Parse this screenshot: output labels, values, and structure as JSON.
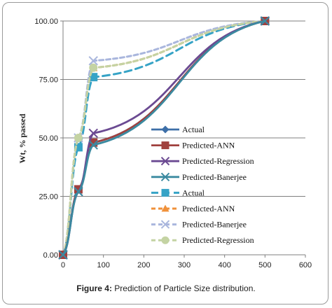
{
  "caption": {
    "label": "Figure 4:",
    "text": "Prediction of Particle Size distribution."
  },
  "chart_data": {
    "type": "line",
    "title": "",
    "xlabel": "",
    "ylabel": "Wt, % passed",
    "xlim": [
      0,
      600
    ],
    "ylim": [
      0,
      100
    ],
    "x_ticks": [
      "0",
      "100",
      "200",
      "300",
      "400",
      "500",
      "600"
    ],
    "y_ticks": [
      "0.00",
      "25.00",
      "50.00",
      "75.00",
      "100.00"
    ],
    "grid": "horizontal",
    "legend_position": "center-right",
    "series": [
      {
        "name": "Actual",
        "group": "solid",
        "color": "#3d6fa8",
        "marker": "diamond",
        "dash": "solid",
        "x": [
          0,
          38,
          75,
          500
        ],
        "y": [
          0,
          28,
          48,
          100
        ]
      },
      {
        "name": "Predicted-ANN",
        "group": "solid",
        "color": "#a0413e",
        "marker": "square",
        "dash": "solid",
        "x": [
          0,
          38,
          75,
          500
        ],
        "y": [
          0,
          28,
          48,
          100
        ]
      },
      {
        "name": "Predicted-Regression",
        "group": "solid",
        "color": "#6b4a92",
        "marker": "x",
        "dash": "solid",
        "x": [
          0,
          38,
          75,
          500
        ],
        "y": [
          0,
          27,
          52,
          100
        ]
      },
      {
        "name": "Predicted-Banerjee",
        "group": "solid",
        "color": "#3b8aa0",
        "marker": "x",
        "dash": "solid",
        "x": [
          0,
          38,
          75,
          500
        ],
        "y": [
          0,
          27,
          47,
          100
        ]
      },
      {
        "name": "Actual",
        "group": "dashed",
        "color": "#36a3c6",
        "marker": "square",
        "dash": "long",
        "x": [
          0,
          38,
          75,
          500
        ],
        "y": [
          0,
          46,
          76,
          100
        ]
      },
      {
        "name": "Predicted-ANN",
        "group": "dashed",
        "color": "#f0913a",
        "marker": "triangle",
        "dash": "medium",
        "x": [
          0,
          38,
          75,
          500
        ],
        "y": [
          0,
          50,
          80,
          100
        ]
      },
      {
        "name": "Predicted-Banerjee",
        "group": "dashed",
        "color": "#a9b6dd",
        "marker": "x",
        "dash": "medium",
        "x": [
          0,
          38,
          75,
          500
        ],
        "y": [
          0,
          50,
          83,
          100
        ]
      },
      {
        "name": "Predicted-Regression",
        "group": "dashed",
        "color": "#c4d3a3",
        "marker": "circle",
        "dash": "medium",
        "x": [
          0,
          38,
          75,
          500
        ],
        "y": [
          0,
          50,
          80,
          100
        ]
      }
    ]
  }
}
